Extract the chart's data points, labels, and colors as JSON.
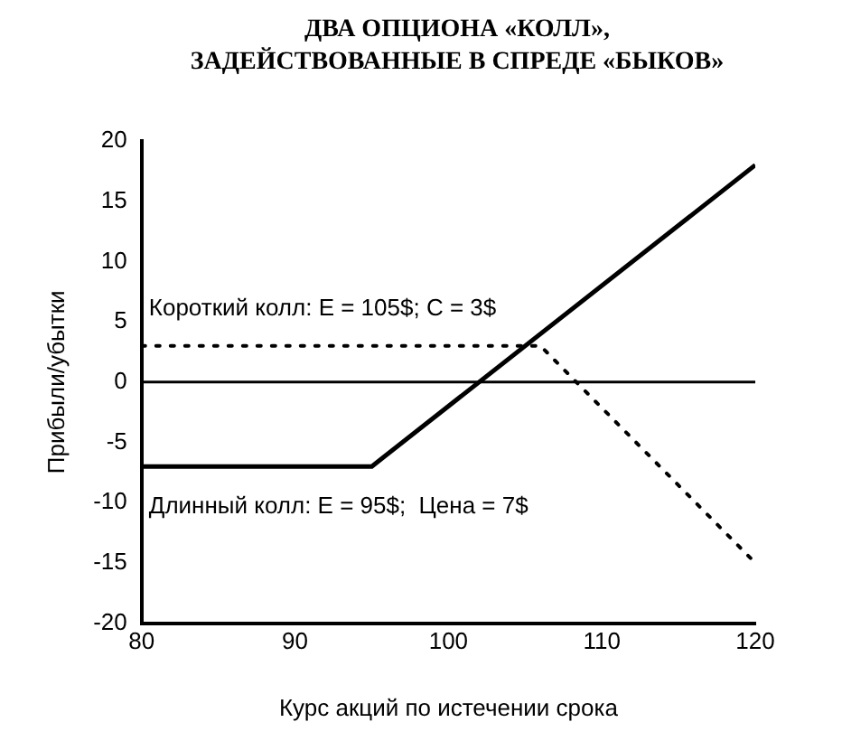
{
  "chart_data": {
    "type": "line",
    "title": "ДВА ОПЦИОНА «КОЛЛ»,\nЗАДЕЙСТВОВАННЫЕ В СПРЕДЕ «БЫКОВ»",
    "xlabel": "Курс акций по истечении срока",
    "ylabel": "Прибыли/убытки",
    "series": [
      {
        "color": "#000000",
        "line_style": "dotted",
        "x": [
          80,
          106,
          120
        ],
        "values": [
          3,
          3,
          -15
        ]
      },
      {
        "color": "#000000",
        "line_style": "solid",
        "x": [
          80,
          95,
          120
        ],
        "values": [
          -7,
          -7,
          18
        ]
      }
    ],
    "xlim": [
      80,
      120
    ],
    "xticks": [
      80,
      90,
      100,
      110,
      120
    ],
    "ylim": [
      -20,
      20
    ],
    "yticks": [
      -20,
      -15,
      -10,
      -5,
      0,
      5,
      10,
      15,
      20
    ],
    "ref_lines": [
      {
        "axis": "y",
        "value": 0,
        "color": "#000000"
      }
    ],
    "annotations": [
      {
        "text": "Короткий колл: E = 105$; C = 3$",
        "x": 80,
        "y": 3
      },
      {
        "text": "Длинный колл: E = 95$;  Цена = 7$",
        "x": 80,
        "y": -7
      }
    ],
    "grid": false,
    "legend": false,
    "marker": "none"
  }
}
